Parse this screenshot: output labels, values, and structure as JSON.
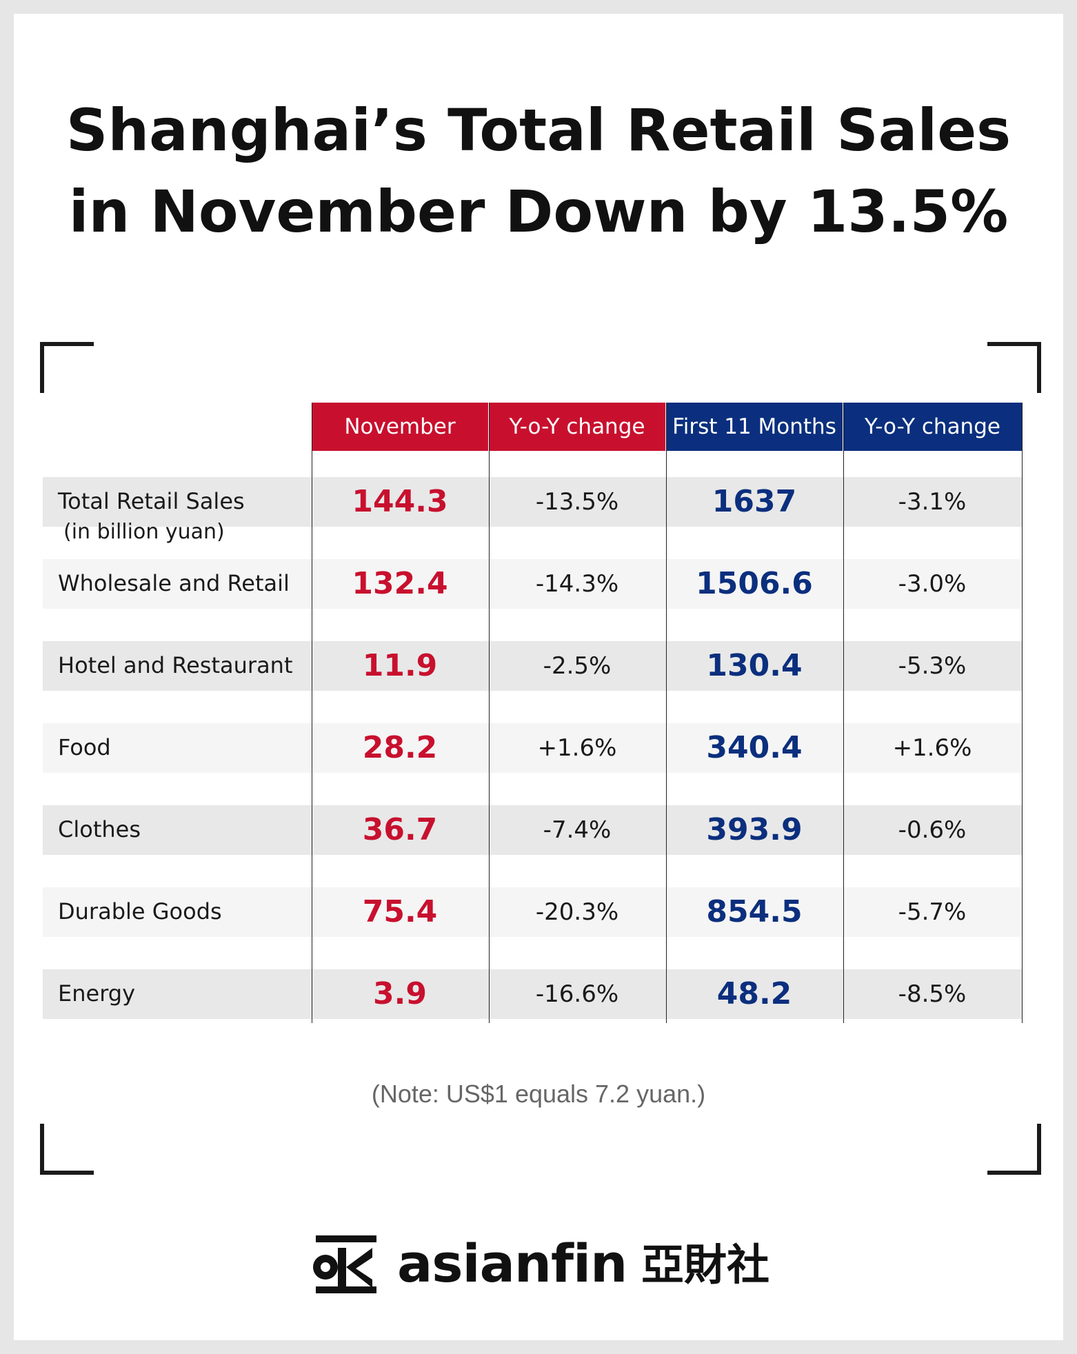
{
  "title_lines": [
    "Shanghai’s Total Retail Sales",
    "in November Down by 13.5%"
  ],
  "colors": {
    "red": "#c8102e",
    "blue": "#0b2f7e"
  },
  "chart_data": {
    "type": "table",
    "columns": [
      "November",
      "Y-o-Y change",
      "First 11 Months",
      "Y-o-Y change"
    ],
    "rows": [
      {
        "label": "Total Retail Sales",
        "sublabel": "(in billion yuan)",
        "november": "144.3",
        "nov_yoy": "-13.5%",
        "first11": "1637",
        "first11_yoy": "-3.1%"
      },
      {
        "label": "Wholesale and Retail",
        "november": "132.4",
        "nov_yoy": "-14.3%",
        "first11": "1506.6",
        "first11_yoy": "-3.0%"
      },
      {
        "label": "Hotel and Restaurant",
        "november": "11.9",
        "nov_yoy": "-2.5%",
        "first11": "130.4",
        "first11_yoy": "-5.3%"
      },
      {
        "label": "Food",
        "november": "28.2",
        "nov_yoy": "+1.6%",
        "first11": "340.4",
        "first11_yoy": "+1.6%"
      },
      {
        "label": "Clothes",
        "november": "36.7",
        "nov_yoy": "-7.4%",
        "first11": "393.9",
        "first11_yoy": "-0.6%"
      },
      {
        "label": "Durable Goods",
        "november": "75.4",
        "nov_yoy": "-20.3%",
        "first11": "854.5",
        "first11_yoy": "-5.7%"
      },
      {
        "label": "Energy",
        "november": "3.9",
        "nov_yoy": "-16.6%",
        "first11": "48.2",
        "first11_yoy": "-8.5%"
      }
    ]
  },
  "note": "(Note: US$1 equals 7.2 yuan.)",
  "logo": {
    "text": "asianfin",
    "cn": "亞財社"
  }
}
